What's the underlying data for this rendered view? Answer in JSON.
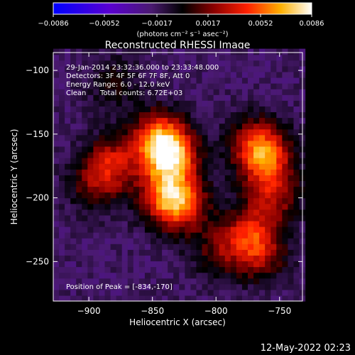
{
  "chart_data": {
    "type": "heatmap",
    "title": "Reconstructed RHESSI Image",
    "xlabel": "Heliocentric X (arcsec)",
    "ylabel": "Heliocentric Y (arcsec)",
    "xlim": [
      -928,
      -732
    ],
    "ylim": [
      -281,
      -86
    ],
    "x_ticks": [
      -900,
      -850,
      -800,
      -750
    ],
    "x_tick_labels": [
      "−900",
      "−850",
      "−800",
      "−750"
    ],
    "y_ticks": [
      -100,
      -150,
      -200,
      -250
    ],
    "y_tick_labels": [
      "−100",
      "−150",
      "−200",
      "−250"
    ],
    "colorbar": {
      "min": -0.0086,
      "max": 0.0086,
      "ticks": [
        -0.0086,
        -0.0052,
        -0.0017,
        0.0017,
        0.0052,
        0.0086
      ],
      "tick_labels": [
        "−0.0086",
        "−0.0052",
        "−0.0017",
        "0.0017",
        "0.0052",
        "0.0086"
      ],
      "unit_label": "(photons cm⁻² s⁻¹ asec⁻²)"
    },
    "peak": {
      "x": -834,
      "y": -170,
      "value": 0.0086
    },
    "sources": [
      {
        "x": -836,
        "y": -168,
        "value": 0.0078
      },
      {
        "x": -845,
        "y": -152,
        "value": 0.006
      },
      {
        "x": -828,
        "y": -205,
        "value": 0.0058
      },
      {
        "x": -840,
        "y": -198,
        "value": 0.0045
      },
      {
        "x": -882,
        "y": -172,
        "value": 0.0045
      },
      {
        "x": -895,
        "y": -190,
        "value": 0.003
      },
      {
        "x": -768,
        "y": -157,
        "value": 0.0048
      },
      {
        "x": -760,
        "y": -172,
        "value": 0.005
      },
      {
        "x": -755,
        "y": -200,
        "value": 0.0038
      },
      {
        "x": -775,
        "y": -228,
        "value": 0.0045
      },
      {
        "x": -765,
        "y": -245,
        "value": 0.0035
      },
      {
        "x": -800,
        "y": -242,
        "value": 0.0025
      },
      {
        "x": -880,
        "y": -110,
        "value": 0.002
      }
    ],
    "colors": {
      "negative": "#3a12a8",
      "zero": "#000000",
      "positive_mid": "#ff1a00",
      "positive_max": "#ffffff"
    }
  },
  "annotations": {
    "line1": "29-Jan-2014 23:32:36.000 to 23:33:48.000",
    "line2": "Detectors: 3F 4F 5F 6F 7F 8F, Att 0",
    "line3": "Energy Range: 6.0 - 12.0 keV",
    "line4_label": "Clean",
    "line4_counts": "Total counts: 6.72E+03",
    "peak_label": "Position of Peak = [-834,-170]"
  },
  "footer": {
    "timestamp": "12-May-2022 02:23"
  }
}
